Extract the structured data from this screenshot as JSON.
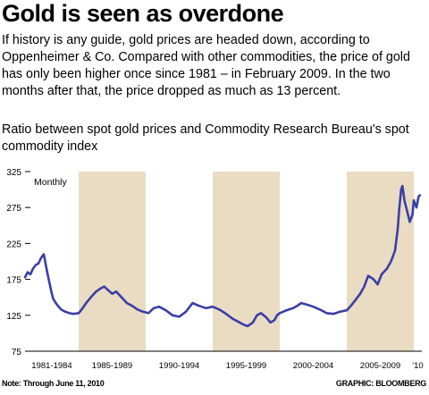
{
  "title": "Gold is seen as overdone",
  "description": "If history is any guide, gold prices are headed down, according to Oppenheimer & Co. Compared with other commodities, the price of gold has only been higher once since 1981 – in February 2009. In the two months after that, the price dropped as much as 13 percent.",
  "subtitle": "Ratio between spot gold prices and Commodity Research Bureau's spot commodity index",
  "note": "Note: Through June 11, 2010",
  "credit": "GRAPHIC: BLOOMBERG",
  "colors": {
    "line": "#3a3fa6",
    "band": "#e9dcc3",
    "axis": "#000000"
  },
  "chart_data": {
    "type": "line",
    "frequency_label": "Monthly",
    "ylim": [
      75,
      325
    ],
    "yticks": [
      75,
      125,
      175,
      225,
      275,
      325
    ],
    "xlim": [
      1981.0,
      2010.6
    ],
    "period_labels": [
      "1981-1984",
      "1985-1989",
      "1990-1994",
      "1995-1999",
      "2000-2004",
      "2005-2009",
      "'10"
    ],
    "shaded_periods": [
      [
        1985,
        1990
      ],
      [
        1995,
        2000
      ],
      [
        2005,
        2010
      ]
    ],
    "series": [
      {
        "name": "",
        "x": [
          1981.0,
          1981.2,
          1981.4,
          1981.6,
          1981.8,
          1982.0,
          1982.2,
          1982.4,
          1982.6,
          1982.8,
          1983.0,
          1983.1,
          1983.3,
          1983.5,
          1983.7,
          1984.0,
          1984.3,
          1984.6,
          1985.0,
          1985.3,
          1985.6,
          1986.0,
          1986.3,
          1986.6,
          1986.9,
          1987.2,
          1987.5,
          1987.8,
          1988.2,
          1988.6,
          1989.0,
          1989.4,
          1989.8,
          1990.2,
          1990.6,
          1991.0,
          1991.5,
          1992.0,
          1992.5,
          1993.0,
          1993.5,
          1994.0,
          1994.5,
          1995.0,
          1995.5,
          1996.0,
          1996.5,
          1997.0,
          1997.3,
          1997.6,
          1998.0,
          1998.3,
          1998.6,
          1999.0,
          1999.3,
          1999.6,
          1999.8,
          2000.0,
          2000.5,
          2001.0,
          2001.3,
          2001.6,
          2002.0,
          2002.5,
          2003.0,
          2003.5,
          2004.0,
          2004.5,
          2005.0,
          2005.3,
          2005.6,
          2006.0,
          2006.3,
          2006.6,
          2007.0,
          2007.3,
          2007.6,
          2008.0,
          2008.3,
          2008.6,
          2008.8,
          2008.9,
          2009.05,
          2009.15,
          2009.3,
          2009.5,
          2009.7,
          2009.9,
          2010.0,
          2010.2,
          2010.35,
          2010.45
        ],
        "values": [
          178,
          185,
          182,
          190,
          195,
          197,
          205,
          210,
          190,
          172,
          155,
          148,
          142,
          137,
          133,
          130,
          128,
          127,
          128,
          135,
          143,
          152,
          158,
          162,
          165,
          160,
          155,
          158,
          150,
          142,
          138,
          133,
          130,
          128,
          135,
          137,
          132,
          125,
          123,
          130,
          142,
          138,
          135,
          137,
          133,
          127,
          120,
          115,
          112,
          110,
          115,
          125,
          128,
          122,
          115,
          118,
          125,
          128,
          132,
          135,
          138,
          142,
          140,
          137,
          133,
          128,
          127,
          130,
          132,
          138,
          145,
          155,
          165,
          180,
          175,
          168,
          182,
          190,
          200,
          215,
          245,
          270,
          300,
          305,
          285,
          270,
          255,
          265,
          285,
          275,
          290,
          292
        ]
      }
    ]
  }
}
